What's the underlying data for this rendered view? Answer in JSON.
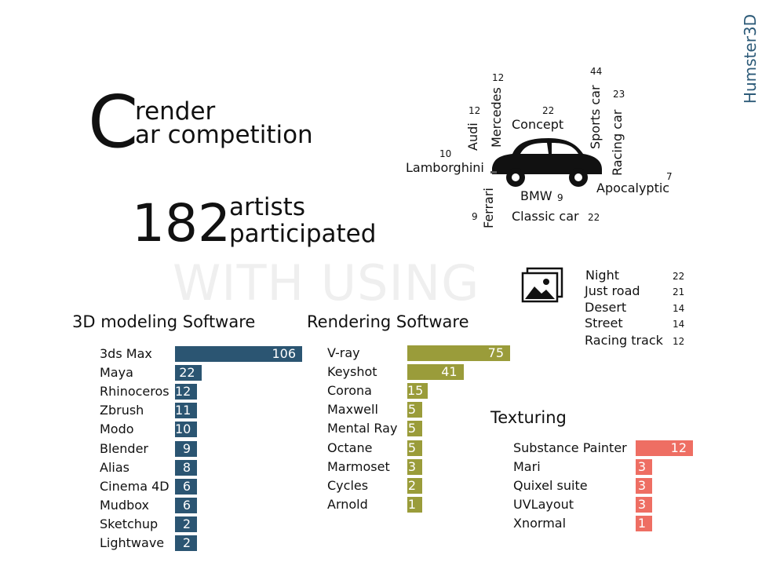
{
  "brand": "Humster3D",
  "title": {
    "initial": "C",
    "line1": "render",
    "line2": "ar  competition"
  },
  "participants": {
    "count": "182",
    "line1": "artists",
    "line2": "participated"
  },
  "watermark": "WITH USING",
  "themes": [
    {
      "label": "Audi",
      "count": "12"
    },
    {
      "label": "Mercedes",
      "count": "12"
    },
    {
      "label": "Concept",
      "count": "22"
    },
    {
      "label": "Sports car",
      "count": "44"
    },
    {
      "label": "Racing car",
      "count": "23"
    },
    {
      "label": "Lamborghini",
      "count": "10"
    },
    {
      "label": "Apocalyptic",
      "count": "7"
    },
    {
      "label": "BMW",
      "count": "9"
    },
    {
      "label": "Ferrari",
      "count": "9"
    },
    {
      "label": "Classic car",
      "count": "22"
    }
  ],
  "backgrounds": [
    {
      "label": "Night",
      "count": "22"
    },
    {
      "label": "Just road",
      "count": "21"
    },
    {
      "label": "Desert",
      "count": "14"
    },
    {
      "label": "Street",
      "count": "14"
    },
    {
      "label": "Racing track",
      "count": "12"
    }
  ],
  "icons": {
    "car": "classic-car-icon",
    "backgrounds": "image-gallery-icon"
  },
  "colors": {
    "modeling": "#2b5572",
    "rendering": "#9a9c3a",
    "texturing": "#ee6e63",
    "brand": "#2c5a78"
  },
  "chart_data": [
    {
      "type": "bar",
      "orientation": "horizontal",
      "title": "3D modeling Software",
      "categories": [
        "3ds Max",
        "Maya",
        "Rhinoceros",
        "Zbrush",
        "Modo",
        "Blender",
        "Alias",
        "Cinema 4D",
        "Mudbox",
        "Sketchup",
        "Lightwave"
      ],
      "values": [
        106,
        22,
        12,
        11,
        10,
        9,
        8,
        6,
        6,
        2,
        2
      ],
      "color": "#2b5572"
    },
    {
      "type": "bar",
      "orientation": "horizontal",
      "title": "Rendering Software",
      "categories": [
        "V-ray",
        "Keyshot",
        "Corona",
        "Maxwell",
        "Mental Ray",
        "Octane",
        "Marmoset",
        "Cycles",
        "Arnold"
      ],
      "values": [
        75,
        41,
        15,
        5,
        5,
        5,
        3,
        2,
        1
      ],
      "color": "#9a9c3a"
    },
    {
      "type": "bar",
      "orientation": "horizontal",
      "title": "Texturing",
      "categories": [
        "Substance Painter",
        "Mari",
        "Quixel suite",
        "UVLayout",
        "Xnormal"
      ],
      "values": [
        12,
        3,
        3,
        3,
        1
      ],
      "color": "#ee6e63"
    }
  ]
}
